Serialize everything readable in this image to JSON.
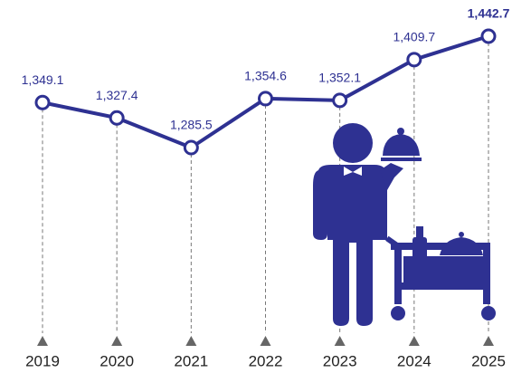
{
  "chart_data": {
    "type": "line",
    "categories": [
      "2019",
      "2020",
      "2021",
      "2022",
      "2023",
      "2024",
      "2025"
    ],
    "values": [
      1349.1,
      1327.4,
      1285.5,
      1354.6,
      1352.1,
      1409.7,
      1442.7
    ],
    "value_labels": [
      "1,349.1",
      "1,327.4",
      "1,285.5",
      "1,354.6",
      "1,352.1",
      "1,409.7",
      "1,442.7"
    ],
    "color": "#2e3192"
  }
}
